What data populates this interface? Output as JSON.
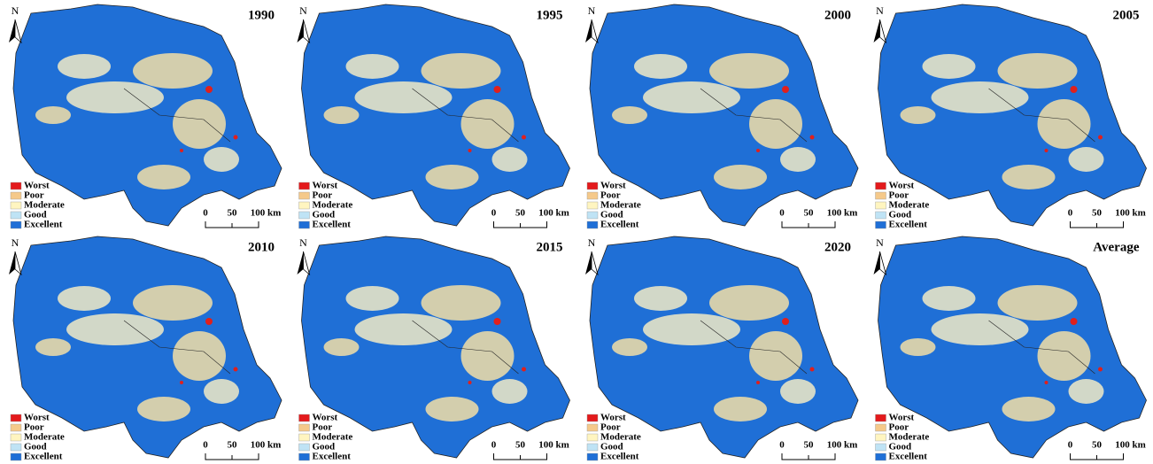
{
  "panels": [
    {
      "title": "1990",
      "north": "N",
      "legend": [
        {
          "label": "Worst",
          "color": "#e31a1c"
        },
        {
          "label": "Poor",
          "color": "#f5c98a"
        },
        {
          "label": "Moderate",
          "color": "#fff5c0"
        },
        {
          "label": "Good",
          "color": "#bfe3f5"
        },
        {
          "label": "Excellent",
          "color": "#1f6fd6"
        }
      ],
      "scale": [
        "0",
        "50",
        "100 km"
      ]
    },
    {
      "title": "1995",
      "north": "N",
      "legend": [
        {
          "label": "Worst",
          "color": "#e31a1c"
        },
        {
          "label": "Poor",
          "color": "#f5c98a"
        },
        {
          "label": "Moderate",
          "color": "#fff5c0"
        },
        {
          "label": "Good",
          "color": "#bfe3f5"
        },
        {
          "label": "Excellent",
          "color": "#1f6fd6"
        }
      ],
      "scale": [
        "0",
        "50",
        "100 km"
      ]
    },
    {
      "title": "2000",
      "north": "N",
      "legend": [
        {
          "label": "Worst",
          "color": "#e31a1c"
        },
        {
          "label": "Poor",
          "color": "#f5c98a"
        },
        {
          "label": "Moderate",
          "color": "#fff5c0"
        },
        {
          "label": "Good",
          "color": "#bfe3f5"
        },
        {
          "label": "Excellent",
          "color": "#1f6fd6"
        }
      ],
      "scale": [
        "0",
        "50",
        "100 km"
      ]
    },
    {
      "title": "2005",
      "north": "N",
      "legend": [
        {
          "label": "Worst",
          "color": "#e31a1c"
        },
        {
          "label": "Poor",
          "color": "#f5c98a"
        },
        {
          "label": "Moderate",
          "color": "#fff5c0"
        },
        {
          "label": "Good",
          "color": "#bfe3f5"
        },
        {
          "label": "Excellent",
          "color": "#1f6fd6"
        }
      ],
      "scale": [
        "0",
        "50",
        "100 km"
      ]
    },
    {
      "title": "2010",
      "north": "N",
      "legend": [
        {
          "label": "Worst",
          "color": "#e31a1c"
        },
        {
          "label": "Poor",
          "color": "#f5c98a"
        },
        {
          "label": "Moderate",
          "color": "#fff5c0"
        },
        {
          "label": "Good",
          "color": "#bfe3f5"
        },
        {
          "label": "Excellent",
          "color": "#1f6fd6"
        }
      ],
      "scale": [
        "0",
        "50",
        "100 km"
      ]
    },
    {
      "title": "2015",
      "north": "N",
      "legend": [
        {
          "label": "Worst",
          "color": "#e31a1c"
        },
        {
          "label": "Poor",
          "color": "#f5c98a"
        },
        {
          "label": "Moderate",
          "color": "#fff5c0"
        },
        {
          "label": "Good",
          "color": "#bfe3f5"
        },
        {
          "label": "Excellent",
          "color": "#1f6fd6"
        }
      ],
      "scale": [
        "0",
        "50",
        "100 km"
      ]
    },
    {
      "title": "2020",
      "north": "N",
      "legend": [
        {
          "label": "Worst",
          "color": "#e31a1c"
        },
        {
          "label": "Poor",
          "color": "#f5c98a"
        },
        {
          "label": "Moderate",
          "color": "#fff5c0"
        },
        {
          "label": "Good",
          "color": "#bfe3f5"
        },
        {
          "label": "Excellent",
          "color": "#1f6fd6"
        }
      ],
      "scale": [
        "0",
        "50",
        "100 km"
      ]
    },
    {
      "title": "Average",
      "north": "N",
      "legend": [
        {
          "label": "Worst",
          "color": "#e31a1c"
        },
        {
          "label": "Poor",
          "color": "#f5c98a"
        },
        {
          "label": "Moderate",
          "color": "#fff5c0"
        },
        {
          "label": "Good",
          "color": "#bfe3f5"
        },
        {
          "label": "Excellent",
          "color": "#1f6fd6"
        }
      ],
      "scale": [
        "0",
        "50",
        "100 km"
      ]
    }
  ]
}
